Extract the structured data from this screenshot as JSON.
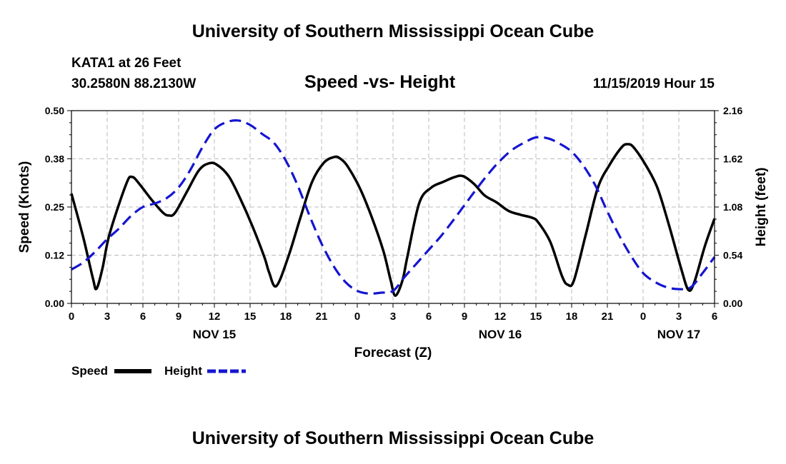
{
  "header": {
    "title": "University of Southern Mississippi Ocean Cube",
    "station": "KATA1 at 26 Feet",
    "coords": "30.2580N 88.2130W",
    "datetime": "11/15/2019 Hour 15"
  },
  "footer": {
    "title": "University of Southern Mississippi Ocean Cube"
  },
  "legend": {
    "speed_label": "Speed",
    "height_label": "Height"
  },
  "colors": {
    "speed": "#000000",
    "height": "#1515d0",
    "grid": "#bbbbbb"
  },
  "chart_data": {
    "type": "line",
    "title": "Speed -vs- Height",
    "xlabel": "Forecast (Z)",
    "ylabel_left": "Speed (Knots)",
    "ylabel_right": "Height (feet)",
    "x_unit": "hours since 2019-11-15 00Z",
    "xlim": [
      0,
      54
    ],
    "ylim_left": [
      0,
      0.5
    ],
    "ylim_right": [
      0,
      2.16
    ],
    "left_ticks": [
      "0.00",
      "0.12",
      "0.25",
      "0.38",
      "0.50"
    ],
    "right_ticks": [
      "0.00",
      "0.54",
      "1.08",
      "1.62",
      "2.16"
    ],
    "x_ticks": [
      {
        "x": 0,
        "label": "0"
      },
      {
        "x": 3,
        "label": "3"
      },
      {
        "x": 6,
        "label": "6"
      },
      {
        "x": 9,
        "label": "9"
      },
      {
        "x": 12,
        "label": "12"
      },
      {
        "x": 15,
        "label": "15"
      },
      {
        "x": 18,
        "label": "18"
      },
      {
        "x": 21,
        "label": "21"
      },
      {
        "x": 24,
        "label": "0"
      },
      {
        "x": 27,
        "label": "3"
      },
      {
        "x": 30,
        "label": "6"
      },
      {
        "x": 33,
        "label": "9"
      },
      {
        "x": 36,
        "label": "12"
      },
      {
        "x": 39,
        "label": "15"
      },
      {
        "x": 42,
        "label": "18"
      },
      {
        "x": 45,
        "label": "21"
      },
      {
        "x": 48,
        "label": "0"
      },
      {
        "x": 51,
        "label": "3"
      },
      {
        "x": 54,
        "label": "6"
      }
    ],
    "day_labels": [
      {
        "x": 12,
        "label": "NOV 15"
      },
      {
        "x": 36,
        "label": "NOV 16"
      },
      {
        "x": 51,
        "label": "NOV 17"
      }
    ],
    "grid": true,
    "series": [
      {
        "name": "Speed",
        "axis": "left",
        "style": "solid",
        "x": [
          0,
          1,
          1.8,
          2.1,
          2.6,
          3.2,
          4.6,
          5.1,
          5.7,
          6.7,
          7.7,
          8.2,
          8.7,
          9.7,
          10.7,
          11.5,
          12.2,
          13.2,
          14.2,
          15.2,
          16.2,
          16.6,
          17.2,
          18.2,
          19.2,
          20.2,
          21.2,
          22.1,
          22.6,
          23.2,
          24.2,
          25.2,
          26.2,
          26.8,
          27.2,
          27.8,
          28.2,
          29.2,
          30.2,
          31.2,
          32.2,
          32.9,
          33.8,
          34.7,
          35.7,
          36.7,
          37.7,
          38.7,
          39.2,
          40.2,
          41.2,
          41.7,
          42.2,
          43.2,
          44.2,
          45.2,
          46.2,
          46.7,
          47.2,
          48.2,
          49.2,
          50.2,
          51.2,
          51.8,
          52.3,
          53.2,
          54
        ],
        "y": [
          0.285,
          0.17,
          0.065,
          0.038,
          0.09,
          0.18,
          0.31,
          0.328,
          0.31,
          0.27,
          0.235,
          0.228,
          0.235,
          0.29,
          0.345,
          0.363,
          0.36,
          0.33,
          0.27,
          0.2,
          0.12,
          0.08,
          0.045,
          0.12,
          0.22,
          0.315,
          0.365,
          0.38,
          0.375,
          0.355,
          0.3,
          0.225,
          0.135,
          0.06,
          0.02,
          0.06,
          0.12,
          0.26,
          0.3,
          0.315,
          0.328,
          0.33,
          0.31,
          0.28,
          0.262,
          0.24,
          0.23,
          0.222,
          0.21,
          0.16,
          0.07,
          0.048,
          0.06,
          0.18,
          0.3,
          0.36,
          0.405,
          0.413,
          0.405,
          0.36,
          0.3,
          0.2,
          0.09,
          0.035,
          0.055,
          0.15,
          0.22
        ]
      },
      {
        "name": "Height",
        "axis": "right",
        "style": "dashed",
        "x": [
          0,
          1,
          2,
          3,
          4,
          5,
          6,
          7,
          8,
          9,
          10,
          11,
          12,
          13,
          14,
          15,
          16,
          17,
          18,
          19,
          20,
          21,
          22,
          23,
          24,
          25,
          26,
          27,
          28,
          29,
          30,
          31,
          32,
          33,
          34,
          35,
          36,
          37,
          38,
          39,
          40,
          41,
          42,
          43,
          44,
          45,
          46,
          47,
          48,
          49,
          50,
          51,
          52,
          53,
          54
        ],
        "y": [
          0.38,
          0.46,
          0.58,
          0.72,
          0.84,
          0.98,
          1.08,
          1.12,
          1.18,
          1.3,
          1.5,
          1.75,
          1.95,
          2.03,
          2.05,
          2.0,
          1.9,
          1.8,
          1.6,
          1.32,
          0.98,
          0.67,
          0.42,
          0.24,
          0.14,
          0.11,
          0.12,
          0.14,
          0.3,
          0.45,
          0.6,
          0.75,
          0.92,
          1.1,
          1.28,
          1.45,
          1.6,
          1.72,
          1.8,
          1.86,
          1.85,
          1.79,
          1.7,
          1.54,
          1.32,
          1.03,
          0.76,
          0.53,
          0.34,
          0.24,
          0.18,
          0.16,
          0.18,
          0.34,
          0.52
        ]
      }
    ]
  }
}
